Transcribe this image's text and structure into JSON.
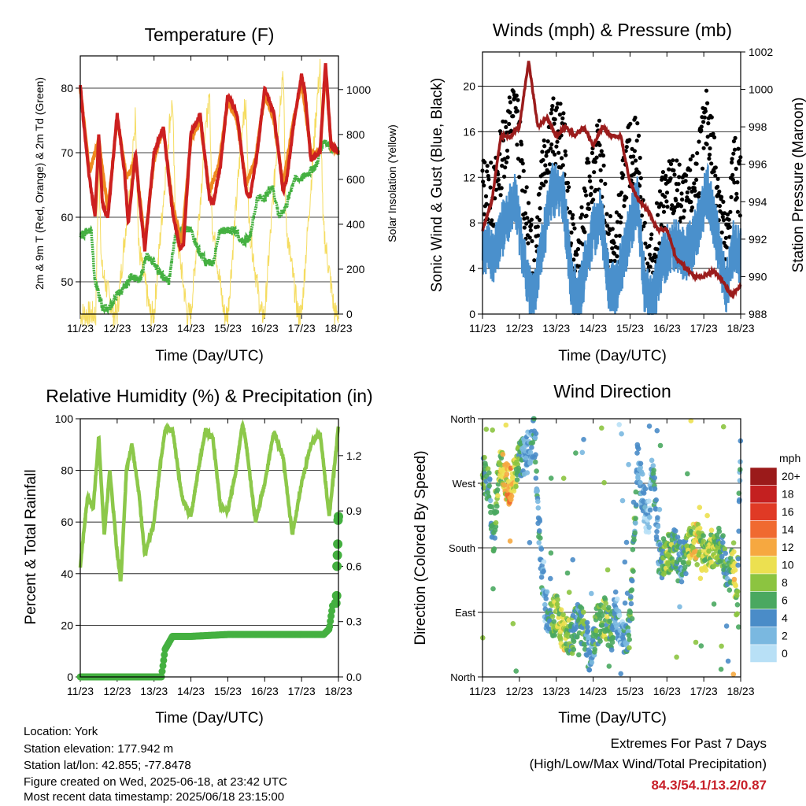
{
  "colors": {
    "t2m": "#cc2020",
    "t9m": "#ee8a20",
    "td": "#44b040",
    "solar": "#f5dc60",
    "wind": "#4a90cc",
    "gust": "#000000",
    "pressure": "#9b1c1c",
    "rh": "#8cc84a",
    "precip": "#44b040",
    "extremes_values": "#c8202a"
  },
  "x_tick_labels": [
    "11/23",
    "12/23",
    "13/23",
    "14/23",
    "15/23",
    "16/23",
    "17/23",
    "18/23"
  ],
  "panels": {
    "temperature": {
      "title": "Temperature (F)",
      "xlabel": "Time (Day/UTC)",
      "ylabel_left": "2m & 9m T (Red, Orange) & 2m Td (Green)",
      "ylabel_right": "Solar Insolation (Yellow)",
      "y_left_ticks": [
        "50",
        "60",
        "70",
        "80"
      ],
      "y_right_ticks": [
        "0",
        "200",
        "400",
        "600",
        "800",
        "1000"
      ]
    },
    "winds": {
      "title": "Winds (mph) & Pressure (mb)",
      "xlabel": "Time (Day/UTC)",
      "ylabel_left": "Sonic Wind & Gust (Blue, Black)",
      "ylabel_right": "Station Pressure (Maroon)",
      "y_left_ticks": [
        "0",
        "4",
        "8",
        "12",
        "16",
        "20"
      ],
      "y_right_ticks": [
        "988",
        "990",
        "992",
        "994",
        "996",
        "998",
        "1000",
        "1002"
      ]
    },
    "humidity": {
      "title": "Relative Humidity (%) & Precipitation (in)",
      "xlabel": "Time (Day/UTC)",
      "ylabel_left": "Percent & Total Rainfall",
      "y_left_ticks": [
        "0",
        "20",
        "40",
        "60",
        "80",
        "100"
      ],
      "y_right_ticks": [
        "0.0",
        "0.3",
        "0.6",
        "0.9",
        "1.2"
      ]
    },
    "direction": {
      "title": "Wind Direction",
      "xlabel": "Time (Day/UTC)",
      "ylabel_left": "Direction (Colored By Speed)",
      "y_left_ticks": [
        "North",
        "East",
        "South",
        "West",
        "North"
      ],
      "legend_title": "mph",
      "legend_labels": [
        "20+",
        "18",
        "16",
        "14",
        "12",
        "10",
        "8",
        "6",
        "4",
        "2",
        "0"
      ],
      "legend_colors": [
        "#9b1a1a",
        "#c42020",
        "#e03a25",
        "#f06a30",
        "#f6a840",
        "#ece050",
        "#8cc440",
        "#4aa860",
        "#4a8cc8",
        "#7ab8e0",
        "#b8e0f6"
      ]
    }
  },
  "chart_data": [
    {
      "type": "line",
      "title": "Temperature (F)",
      "xlabel": "Time (Day/UTC)",
      "ylabel": "2m & 9m T (Red, Orange) & 2m Td (Green)",
      "y2label": "Solar Insolation (Yellow)",
      "x_unit": "days since 11/23 00 UTC",
      "xlim": [
        0,
        7
      ],
      "ylim": [
        45,
        85
      ],
      "y2lim": [
        0,
        1150
      ],
      "series": [
        {
          "name": "2m T",
          "axis": "left",
          "x": [
            0,
            0.1,
            0.25,
            0.4,
            0.5,
            0.6,
            0.75,
            1.0,
            1.2,
            1.3,
            1.5,
            1.6,
            1.75,
            2.0,
            2.25,
            2.5,
            2.7,
            2.8,
            3.0,
            3.25,
            3.5,
            3.6,
            3.8,
            4.0,
            4.25,
            4.5,
            4.6,
            4.8,
            5.0,
            5.25,
            5.5,
            5.6,
            5.8,
            6.0,
            6.1,
            6.25,
            6.5,
            6.65,
            6.8,
            7.0
          ],
          "values": [
            80.5,
            74,
            66,
            60,
            73,
            62,
            60,
            76,
            67,
            59,
            70,
            63,
            55,
            70,
            74,
            61,
            55,
            56,
            73,
            76,
            63,
            62,
            68,
            79,
            76,
            64,
            63,
            70,
            80,
            76,
            64,
            66,
            75,
            82,
            79,
            69,
            70,
            84,
            71,
            70
          ]
        },
        {
          "name": "9m T",
          "axis": "left",
          "x": [
            0,
            0.25,
            0.5,
            0.75,
            1.0,
            1.25,
            1.5,
            1.75,
            2.0,
            2.25,
            2.5,
            2.75,
            3.0,
            3.25,
            3.5,
            3.75,
            4.0,
            4.25,
            4.5,
            4.75,
            5.0,
            5.25,
            5.5,
            5.75,
            6.0,
            6.25,
            6.5,
            6.65,
            6.8,
            7.0
          ],
          "values": [
            80,
            67,
            72,
            61,
            75.5,
            66,
            69,
            56,
            69,
            74,
            62,
            56,
            72,
            75,
            64,
            68,
            78,
            75,
            65,
            69,
            79,
            75,
            65,
            74,
            81,
            70,
            70,
            83,
            71,
            70
          ]
        },
        {
          "name": "2m Td",
          "axis": "left",
          "x": [
            0,
            0.2,
            0.3,
            0.4,
            0.6,
            0.8,
            1.0,
            1.2,
            1.4,
            1.6,
            1.8,
            2.0,
            2.2,
            2.4,
            2.6,
            2.8,
            3.0,
            3.2,
            3.4,
            3.6,
            3.8,
            4.0,
            4.2,
            4.4,
            4.6,
            4.8,
            5.0,
            5.2,
            5.4,
            5.6,
            5.8,
            6.0,
            6.2,
            6.4,
            6.6,
            6.8,
            7.0
          ],
          "values": [
            57,
            58,
            58,
            50,
            46,
            46,
            48,
            49,
            51,
            50,
            54,
            53,
            51,
            50,
            58,
            58,
            58,
            55,
            53,
            53,
            58,
            58,
            58,
            56,
            57,
            63,
            63,
            65,
            60,
            62,
            66,
            66,
            67,
            68,
            72,
            71,
            70
          ]
        },
        {
          "name": "Solar Insolation",
          "axis": "right",
          "x": [
            0,
            0.42,
            0.5,
            0.58,
            0.9,
            1.0,
            1.42,
            1.5,
            1.58,
            1.9,
            2.0,
            2.42,
            2.5,
            2.58,
            2.9,
            3.0,
            3.42,
            3.5,
            3.58,
            3.9,
            4.0,
            4.42,
            4.5,
            4.58,
            4.9,
            5.0,
            5.42,
            5.5,
            5.58,
            5.9,
            6.0,
            6.42,
            6.5,
            6.58,
            6.9,
            7.0
          ],
          "values": [
            0,
            0,
            700,
            200,
            0,
            0,
            700,
            900,
            300,
            0,
            0,
            850,
            950,
            400,
            0,
            0,
            850,
            1000,
            400,
            0,
            0,
            900,
            900,
            400,
            0,
            0,
            950,
            1100,
            400,
            0,
            0,
            950,
            1100,
            400,
            0,
            0
          ]
        }
      ]
    },
    {
      "type": "line",
      "title": "Winds (mph) & Pressure (mb)",
      "xlabel": "Time (Day/UTC)",
      "ylabel": "Sonic Wind & Gust (Blue, Black)",
      "y2label": "Station Pressure (Maroon)",
      "x_unit": "days since 11/23 00 UTC",
      "xlim": [
        0,
        7
      ],
      "ylim": [
        0,
        23
      ],
      "y2lim": [
        988,
        1002
      ],
      "series": [
        {
          "name": "Sonic Wind",
          "axis": "left",
          "x": [
            0,
            0.3,
            0.6,
            0.9,
            1.2,
            1.4,
            1.6,
            1.9,
            2.2,
            2.4,
            2.6,
            2.9,
            3.2,
            3.4,
            3.6,
            3.9,
            4.2,
            4.4,
            4.6,
            4.9,
            5.2,
            5.5,
            5.8,
            6.1,
            6.4,
            6.6,
            6.8,
            7.0
          ],
          "values": [
            6,
            5,
            8,
            10,
            3,
            1,
            6,
            11,
            10,
            3,
            1,
            6,
            9,
            3,
            2,
            6,
            10,
            2,
            1,
            5,
            6,
            5,
            7,
            11,
            6,
            2,
            6,
            5
          ]
        },
        {
          "name": "Gust",
          "axis": "left",
          "x": [
            0,
            0.3,
            0.6,
            0.9,
            1.2,
            1.4,
            1.6,
            1.9,
            2.2,
            2.4,
            2.6,
            2.9,
            3.2,
            3.4,
            3.6,
            3.9,
            4.2,
            4.4,
            4.6,
            4.9,
            5.2,
            5.5,
            5.8,
            6.1,
            6.4,
            6.6,
            6.8,
            7.0
          ],
          "values": [
            10,
            9,
            14,
            17,
            7,
            3,
            12,
            15,
            14,
            5,
            3,
            11,
            13,
            5,
            4,
            12,
            14,
            4,
            3,
            9,
            10,
            8,
            11,
            16,
            10,
            4,
            12,
            10
          ]
        },
        {
          "name": "Station Pressure",
          "axis": "right",
          "x": [
            0,
            0.25,
            0.5,
            0.75,
            1.0,
            1.25,
            1.5,
            1.75,
            2.0,
            2.25,
            2.5,
            2.75,
            3.0,
            3.25,
            3.5,
            3.75,
            4.0,
            4.25,
            4.5,
            4.75,
            5.0,
            5.25,
            5.5,
            5.75,
            6.0,
            6.25,
            6.5,
            6.75,
            7.0
          ],
          "values": [
            992.5,
            994,
            997.5,
            997.5,
            998,
            1001.5,
            998,
            998.5,
            997.5,
            998,
            997.5,
            998,
            997,
            998,
            997.5,
            997.5,
            995,
            994,
            993.5,
            992.5,
            992.5,
            991,
            990.5,
            990,
            990,
            990.3,
            989.8,
            989,
            989.5
          ]
        }
      ]
    },
    {
      "type": "line",
      "title": "Relative Humidity (%) & Precipitation (in)",
      "xlabel": "Time (Day/UTC)",
      "ylabel": "Percent & Total Rainfall",
      "x_unit": "days since 11/23 00 UTC",
      "xlim": [
        0,
        7
      ],
      "ylim": [
        0,
        100
      ],
      "y2lim": [
        0,
        1.4
      ],
      "series": [
        {
          "name": "Relative Humidity",
          "axis": "left",
          "x": [
            0,
            0.2,
            0.35,
            0.5,
            0.65,
            0.8,
            1.0,
            1.1,
            1.25,
            1.4,
            1.6,
            1.75,
            2.0,
            2.15,
            2.3,
            2.5,
            2.75,
            3.0,
            3.2,
            3.4,
            3.6,
            3.8,
            4.0,
            4.2,
            4.4,
            4.5,
            4.75,
            5.0,
            5.25,
            5.5,
            5.75,
            6.0,
            6.25,
            6.5,
            6.75,
            7.0
          ],
          "values": [
            43,
            70,
            65,
            93,
            55,
            80,
            48,
            37,
            80,
            90,
            70,
            47,
            60,
            80,
            96,
            96,
            70,
            62,
            80,
            96,
            92,
            66,
            64,
            78,
            98,
            90,
            60,
            75,
            95,
            85,
            55,
            75,
            90,
            95,
            62,
            97
          ]
        },
        {
          "name": "Total Precipitation",
          "axis": "right",
          "x": [
            0,
            2.2,
            2.3,
            2.5,
            3.0,
            4.0,
            5.0,
            6.0,
            6.6,
            6.75,
            6.85,
            6.9,
            6.95,
            7.0
          ],
          "values": [
            0,
            0,
            0.15,
            0.22,
            0.22,
            0.23,
            0.23,
            0.23,
            0.23,
            0.26,
            0.4,
            0.6,
            0.85,
            0.87
          ]
        }
      ]
    },
    {
      "type": "scatter",
      "title": "Wind Direction",
      "xlabel": "Time (Day/UTC)",
      "ylabel": "Direction (Colored By Speed)",
      "x_unit": "days since 11/23 00 UTC",
      "xlim": [
        0,
        7
      ],
      "ylim": [
        0,
        360
      ],
      "colorbar_unit": "mph",
      "series": [
        {
          "name": "Wind Direction",
          "x": [
            0.1,
            0.2,
            0.3,
            0.45,
            0.6,
            0.75,
            0.9,
            1.0,
            1.2,
            1.4,
            1.6,
            1.7,
            1.85,
            2.0,
            2.2,
            2.4,
            2.6,
            2.8,
            2.9,
            3.1,
            3.3,
            3.5,
            3.6,
            3.8,
            4.0,
            4.2,
            4.5,
            4.6,
            4.8,
            5.0,
            5.2,
            5.4,
            5.6,
            5.8,
            6.0,
            6.2,
            6.5,
            6.7,
            6.8,
            6.9,
            7.0
          ],
          "values": [
            280,
            255,
            190,
            300,
            275,
            265,
            280,
            300,
            310,
            340,
            150,
            100,
            75,
            90,
            60,
            55,
            80,
            60,
            30,
            70,
            85,
            60,
            95,
            50,
            70,
            300,
            210,
            300,
            160,
            170,
            180,
            160,
            180,
            190,
            170,
            180,
            180,
            130,
            175,
            90,
            350
          ],
          "speed": [
            6,
            4,
            6,
            8,
            10,
            12,
            8,
            6,
            2,
            4,
            4,
            2,
            6,
            8,
            10,
            6,
            4,
            6,
            2,
            6,
            8,
            6,
            4,
            2,
            6,
            4,
            2,
            4,
            4,
            8,
            6,
            4,
            8,
            10,
            8,
            8,
            6,
            4,
            10,
            8,
            2
          ]
        }
      ]
    }
  ],
  "footer": {
    "location": "Location: York",
    "elevation": "Station elevation: 177.942 m",
    "latlon": "Station lat/lon: 42.855; -77.8478",
    "created": "Figure created on Wed, 2025-06-18, at 23:42 UTC",
    "recent": "Most recent data timestamp: 2025/06/18 23:15:00",
    "extremes_title": "Extremes For Past 7 Days",
    "extremes_subtitle": "(High/Low/Max Wind/Total Precipitation)",
    "extremes_values": "84.3/54.1/13.2/0.87"
  }
}
